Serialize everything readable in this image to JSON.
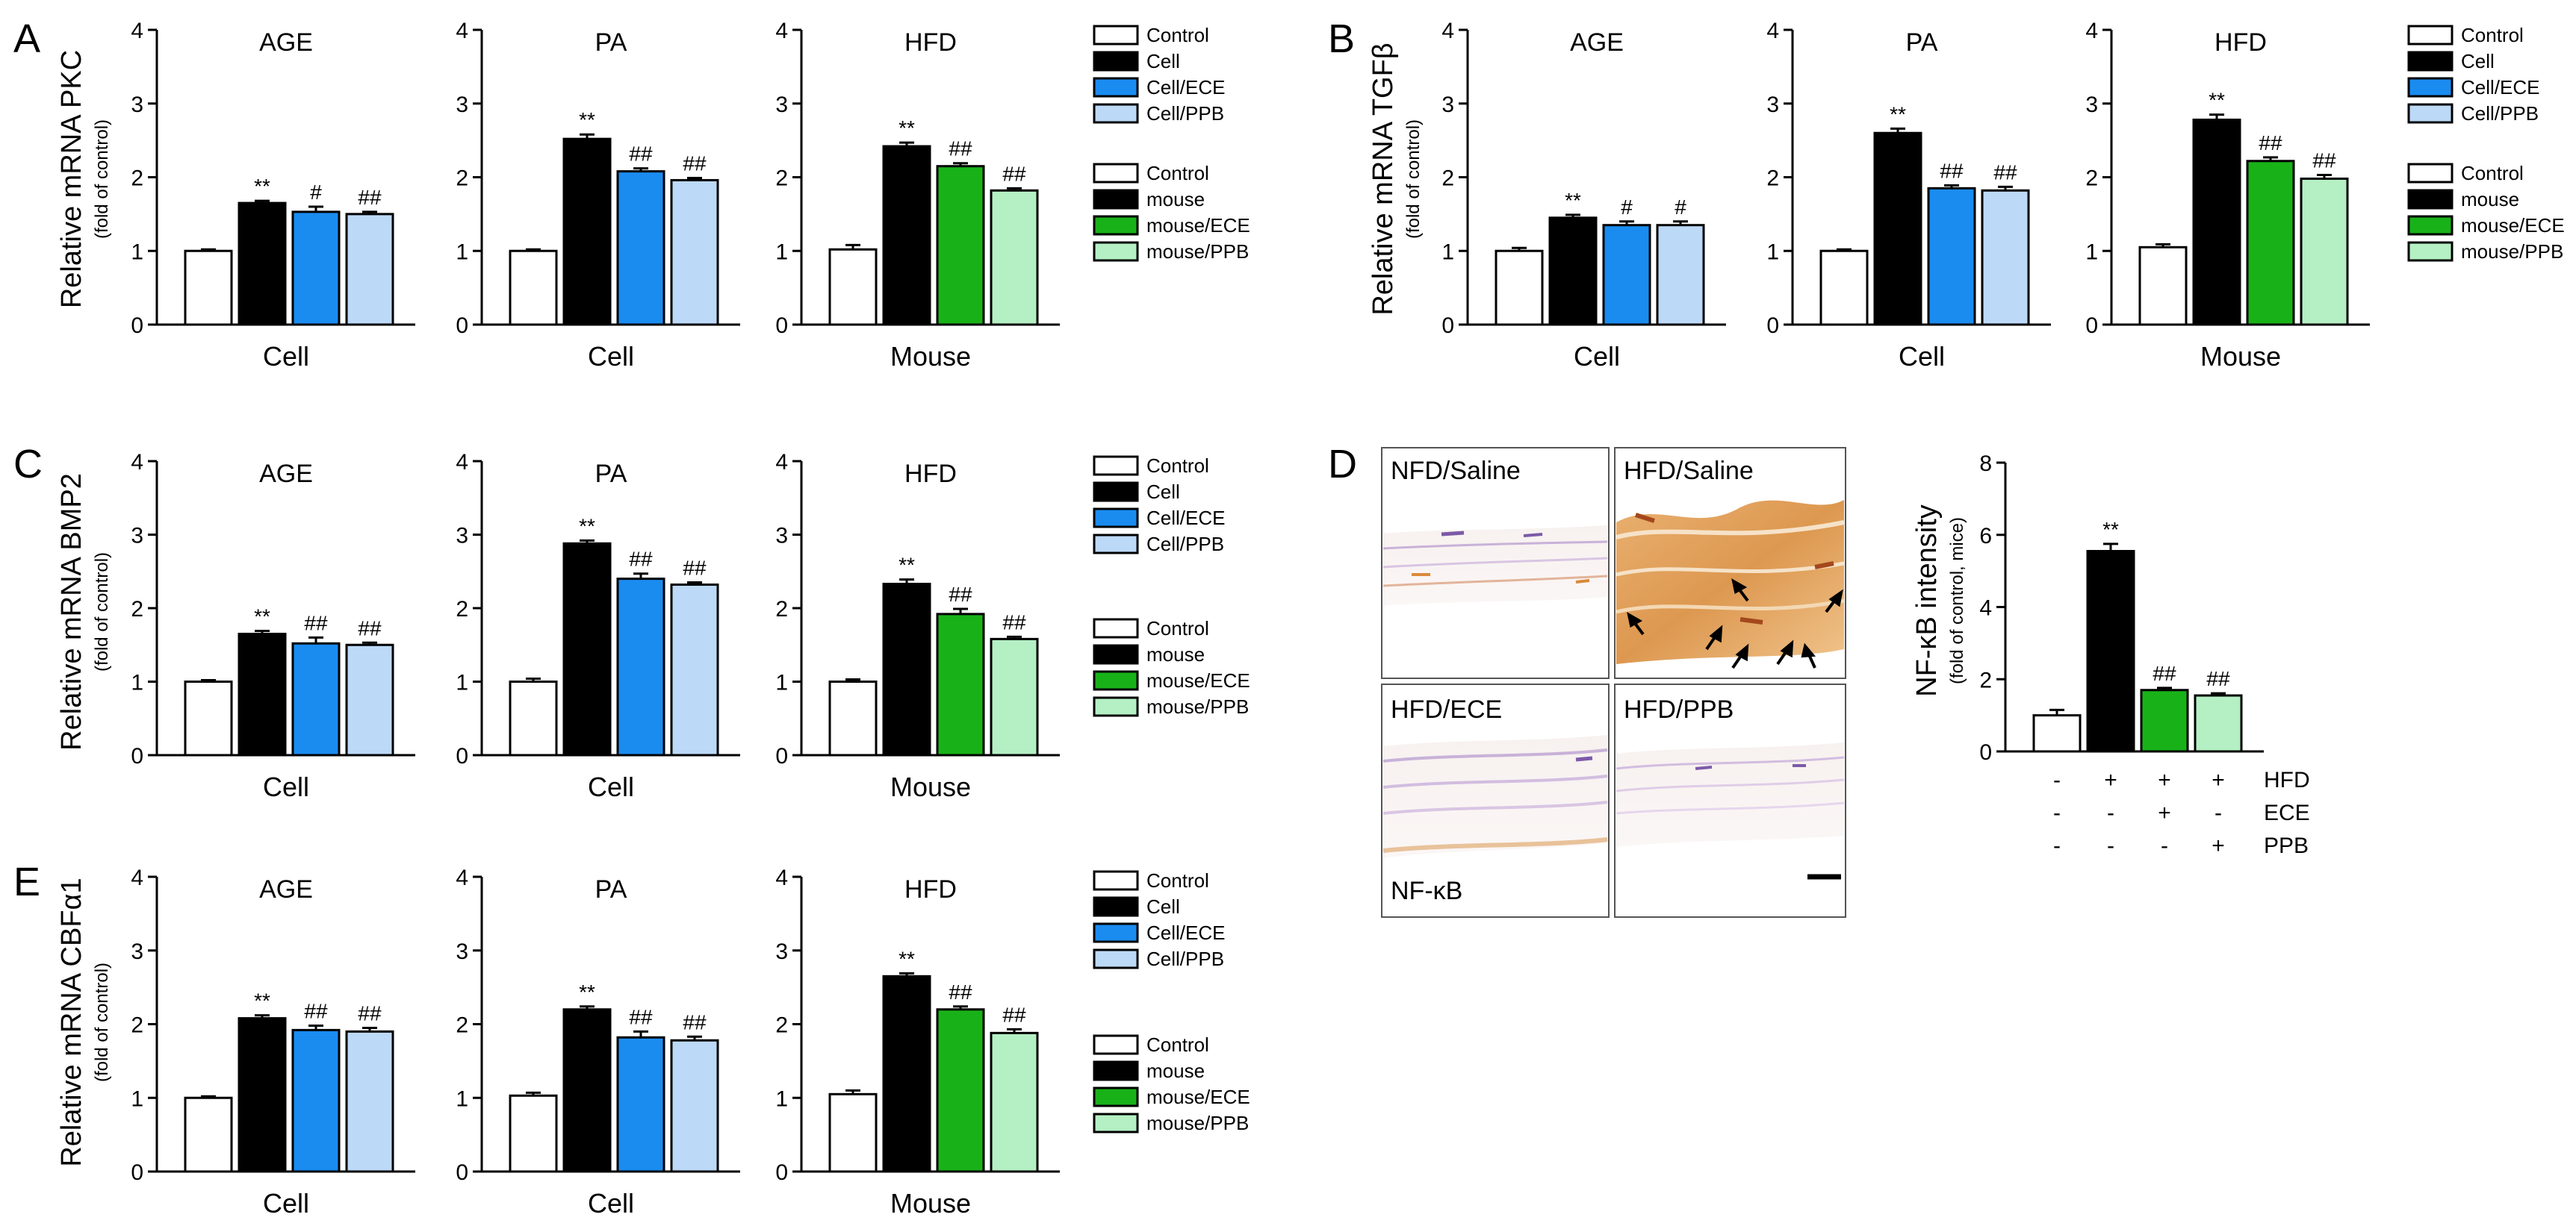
{
  "colors": {
    "control": "#ffffff",
    "disease": "#000000",
    "ece_cell": "#1a8cf0",
    "ppb_cell": "#bcd9f7",
    "ece_mouse": "#18b218",
    "ppb_mouse": "#b4f0c4",
    "axis": "#000000"
  },
  "legends": {
    "cell": [
      "Control",
      "Cell",
      "Cell/ECE",
      "Cell/PPB"
    ],
    "mouse": [
      "Control",
      "mouse",
      "mouse/ECE",
      "mouse/PPB"
    ]
  },
  "panels": [
    {
      "letter": "A",
      "ylabel": "Relative mRNA PKC",
      "ysub": "(fold of control)"
    },
    {
      "letter": "B",
      "ylabel": "Relative mRNA TGFβ",
      "ysub": "(fold of control)"
    },
    {
      "letter": "C",
      "ylabel": "Relative mRNA BMP2",
      "ysub": "(fold of control)"
    },
    {
      "letter": "E",
      "ylabel": "Relative mRNA CBFα1",
      "ysub": "(fold of control)"
    }
  ],
  "chart_data": [
    {
      "type": "bar",
      "panel": "A",
      "title": "AGE",
      "xlabel": "Cell",
      "ylabel": "Relative mRNA PKC (fold of control)",
      "ylim": [
        0,
        4
      ],
      "yticks": [
        0,
        1,
        2,
        3,
        4
      ],
      "categories": [
        "Control",
        "Cell",
        "Cell/ECE",
        "Cell/PPB"
      ],
      "values": [
        1.0,
        1.65,
        1.53,
        1.5
      ],
      "errors": [
        0.02,
        0.03,
        0.07,
        0.03
      ],
      "annotations": [
        "",
        "**",
        "#",
        "##"
      ]
    },
    {
      "type": "bar",
      "panel": "A",
      "title": "PA",
      "xlabel": "Cell",
      "ylabel": "Relative mRNA PKC (fold of control)",
      "ylim": [
        0,
        4
      ],
      "yticks": [
        0,
        1,
        2,
        3,
        4
      ],
      "categories": [
        "Control",
        "Cell",
        "Cell/ECE",
        "Cell/PPB"
      ],
      "values": [
        1.0,
        2.52,
        2.08,
        1.96
      ],
      "errors": [
        0.02,
        0.06,
        0.04,
        0.03
      ],
      "annotations": [
        "",
        "**",
        "##",
        "##"
      ]
    },
    {
      "type": "bar",
      "panel": "A",
      "title": "HFD",
      "xlabel": "Mouse",
      "ylabel": "Relative mRNA PKC (fold of control)",
      "ylim": [
        0,
        4
      ],
      "yticks": [
        0,
        1,
        2,
        3,
        4
      ],
      "categories": [
        "Control",
        "mouse",
        "mouse/ECE",
        "mouse/PPB"
      ],
      "values": [
        1.02,
        2.42,
        2.15,
        1.82
      ],
      "errors": [
        0.06,
        0.05,
        0.04,
        0.03
      ],
      "annotations": [
        "",
        "**",
        "##",
        "##"
      ]
    },
    {
      "type": "bar",
      "panel": "B",
      "title": "AGE",
      "xlabel": "Cell",
      "ylabel": "Relative mRNA TGFβ (fold of control)",
      "ylim": [
        0,
        4
      ],
      "yticks": [
        0,
        1,
        2,
        3,
        4
      ],
      "categories": [
        "Control",
        "Cell",
        "Cell/ECE",
        "Cell/PPB"
      ],
      "values": [
        1.0,
        1.45,
        1.35,
        1.35
      ],
      "errors": [
        0.04,
        0.04,
        0.05,
        0.05
      ],
      "annotations": [
        "",
        "**",
        "#",
        "#"
      ]
    },
    {
      "type": "bar",
      "panel": "B",
      "title": "PA",
      "xlabel": "Cell",
      "ylabel": "Relative mRNA TGFβ (fold of control)",
      "ylim": [
        0,
        4
      ],
      "yticks": [
        0,
        1,
        2,
        3,
        4
      ],
      "categories": [
        "Control",
        "Cell",
        "Cell/ECE",
        "Cell/PPB"
      ],
      "values": [
        1.0,
        2.6,
        1.85,
        1.82
      ],
      "errors": [
        0.02,
        0.06,
        0.04,
        0.05
      ],
      "annotations": [
        "",
        "**",
        "##",
        "##"
      ]
    },
    {
      "type": "bar",
      "panel": "B",
      "title": "HFD",
      "xlabel": "Mouse",
      "ylabel": "Relative mRNA TGFβ (fold of control)",
      "ylim": [
        0,
        4
      ],
      "yticks": [
        0,
        1,
        2,
        3,
        4
      ],
      "categories": [
        "Control",
        "mouse",
        "mouse/ECE",
        "mouse/PPB"
      ],
      "values": [
        1.05,
        2.78,
        2.22,
        1.98
      ],
      "errors": [
        0.04,
        0.07,
        0.05,
        0.05
      ],
      "annotations": [
        "",
        "**",
        "##",
        "##"
      ]
    },
    {
      "type": "bar",
      "panel": "C",
      "title": "AGE",
      "xlabel": "Cell",
      "ylabel": "Relative mRNA BMP2 (fold of control)",
      "ylim": [
        0,
        4
      ],
      "yticks": [
        0,
        1,
        2,
        3,
        4
      ],
      "categories": [
        "Control",
        "Cell",
        "Cell/ECE",
        "Cell/PPB"
      ],
      "values": [
        1.0,
        1.65,
        1.52,
        1.5
      ],
      "errors": [
        0.02,
        0.04,
        0.08,
        0.03
      ],
      "annotations": [
        "",
        "**",
        "##",
        "##"
      ]
    },
    {
      "type": "bar",
      "panel": "C",
      "title": "PA",
      "xlabel": "Cell",
      "ylabel": "Relative mRNA BMP2 (fold of control)",
      "ylim": [
        0,
        4
      ],
      "yticks": [
        0,
        1,
        2,
        3,
        4
      ],
      "categories": [
        "Control",
        "Cell",
        "Cell/ECE",
        "Cell/PPB"
      ],
      "values": [
        1.0,
        2.88,
        2.4,
        2.32
      ],
      "errors": [
        0.04,
        0.04,
        0.07,
        0.03
      ],
      "annotations": [
        "",
        "**",
        "##",
        "##"
      ]
    },
    {
      "type": "bar",
      "panel": "C",
      "title": "HFD",
      "xlabel": "Mouse",
      "ylabel": "Relative mRNA BMP2 (fold of control)",
      "ylim": [
        0,
        4
      ],
      "yticks": [
        0,
        1,
        2,
        3,
        4
      ],
      "categories": [
        "Control",
        "mouse",
        "mouse/ECE",
        "mouse/PPB"
      ],
      "values": [
        1.0,
        2.33,
        1.92,
        1.58
      ],
      "errors": [
        0.03,
        0.06,
        0.07,
        0.03
      ],
      "annotations": [
        "",
        "**",
        "##",
        "##"
      ]
    },
    {
      "type": "bar",
      "panel": "E",
      "title": "AGE",
      "xlabel": "Cell",
      "ylabel": "Relative mRNA CBFα1 (fold of control)",
      "ylim": [
        0,
        4
      ],
      "yticks": [
        0,
        1,
        2,
        3,
        4
      ],
      "categories": [
        "Control",
        "Cell",
        "Cell/ECE",
        "Cell/PPB"
      ],
      "values": [
        1.0,
        2.08,
        1.92,
        1.9
      ],
      "errors": [
        0.02,
        0.04,
        0.06,
        0.05
      ],
      "annotations": [
        "",
        "**",
        "##",
        "##"
      ]
    },
    {
      "type": "bar",
      "panel": "E",
      "title": "PA",
      "xlabel": "Cell",
      "ylabel": "Relative mRNA CBFα1 (fold of control)",
      "ylim": [
        0,
        4
      ],
      "yticks": [
        0,
        1,
        2,
        3,
        4
      ],
      "categories": [
        "Control",
        "Cell",
        "Cell/ECE",
        "Cell/PPB"
      ],
      "values": [
        1.03,
        2.2,
        1.82,
        1.78
      ],
      "errors": [
        0.04,
        0.04,
        0.08,
        0.05
      ],
      "annotations": [
        "",
        "**",
        "##",
        "##"
      ]
    },
    {
      "type": "bar",
      "panel": "E",
      "title": "HFD",
      "xlabel": "Mouse",
      "ylabel": "Relative mRNA CBFα1 (fold of control)",
      "ylim": [
        0,
        4
      ],
      "yticks": [
        0,
        1,
        2,
        3,
        4
      ],
      "categories": [
        "Control",
        "mouse",
        "mouse/ECE",
        "mouse/PPB"
      ],
      "values": [
        1.05,
        2.65,
        2.2,
        1.88
      ],
      "errors": [
        0.05,
        0.04,
        0.04,
        0.05
      ],
      "annotations": [
        "",
        "**",
        "##",
        "##"
      ]
    },
    {
      "type": "bar",
      "panel": "D",
      "title": "",
      "xlabel": "",
      "ylabel": "NF-κB intensity",
      "ysub": "(fold of control, mice)",
      "ylim": [
        0,
        8
      ],
      "yticks": [
        0,
        2,
        4,
        6,
        8
      ],
      "categories": [
        "Control",
        "HFD",
        "HFD/ECE",
        "HFD/PPB"
      ],
      "values": [
        1.0,
        5.55,
        1.7,
        1.55
      ],
      "errors": [
        0.15,
        0.2,
        0.06,
        0.06
      ],
      "annotations": [
        "",
        "**",
        "##",
        "##"
      ],
      "treatment_table": {
        "rows": [
          {
            "label": "HFD",
            "signs": [
              "-",
              "+",
              "+",
              "+"
            ]
          },
          {
            "label": "ECE",
            "signs": [
              "-",
              "-",
              "+",
              "-"
            ]
          },
          {
            "label": "PPB",
            "signs": [
              "-",
              "-",
              "-",
              "+"
            ]
          }
        ]
      }
    }
  ],
  "histology": {
    "letter": "D",
    "panels": [
      "NFD/Saline",
      "HFD/Saline",
      "HFD/ECE",
      "HFD/PPB"
    ],
    "stain_label": "NF-κB"
  }
}
